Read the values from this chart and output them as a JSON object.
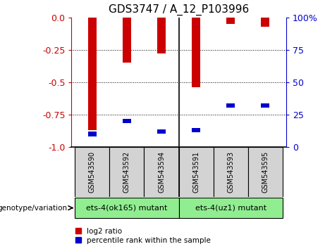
{
  "title": "GDS3747 / A_12_P103996",
  "samples": [
    "GSM543590",
    "GSM543592",
    "GSM543594",
    "GSM543591",
    "GSM543593",
    "GSM543595"
  ],
  "log2_ratios": [
    -0.87,
    -0.35,
    -0.28,
    -0.54,
    -0.05,
    -0.07
  ],
  "percentile_ranks": [
    10,
    20,
    12,
    13,
    32,
    32
  ],
  "groups": [
    {
      "label": "ets-4(ok165) mutant",
      "indices": [
        0,
        1,
        2
      ],
      "color": "#90ee90"
    },
    {
      "label": "ets-4(uz1) mutant",
      "indices": [
        3,
        4,
        5
      ],
      "color": "#90ee90"
    }
  ],
  "ylim_left": [
    -1.0,
    0.0
  ],
  "ylim_right": [
    0,
    100
  ],
  "yticks_left": [
    0.0,
    -0.25,
    -0.5,
    -0.75,
    -1.0
  ],
  "yticks_right": [
    0,
    25,
    50,
    75,
    100
  ],
  "bar_color": "#cc0000",
  "pct_color": "#0000cc",
  "bar_width": 0.25,
  "grid_color": "#000000",
  "bg_color": "#ffffff",
  "left_axis_color": "#cc0000",
  "right_axis_color": "#0000cc",
  "label_box_color": "#d3d3d3",
  "legend_red_label": "log2 ratio",
  "legend_blue_label": "percentile rank within the sample",
  "genotype_label": "genotype/variation"
}
